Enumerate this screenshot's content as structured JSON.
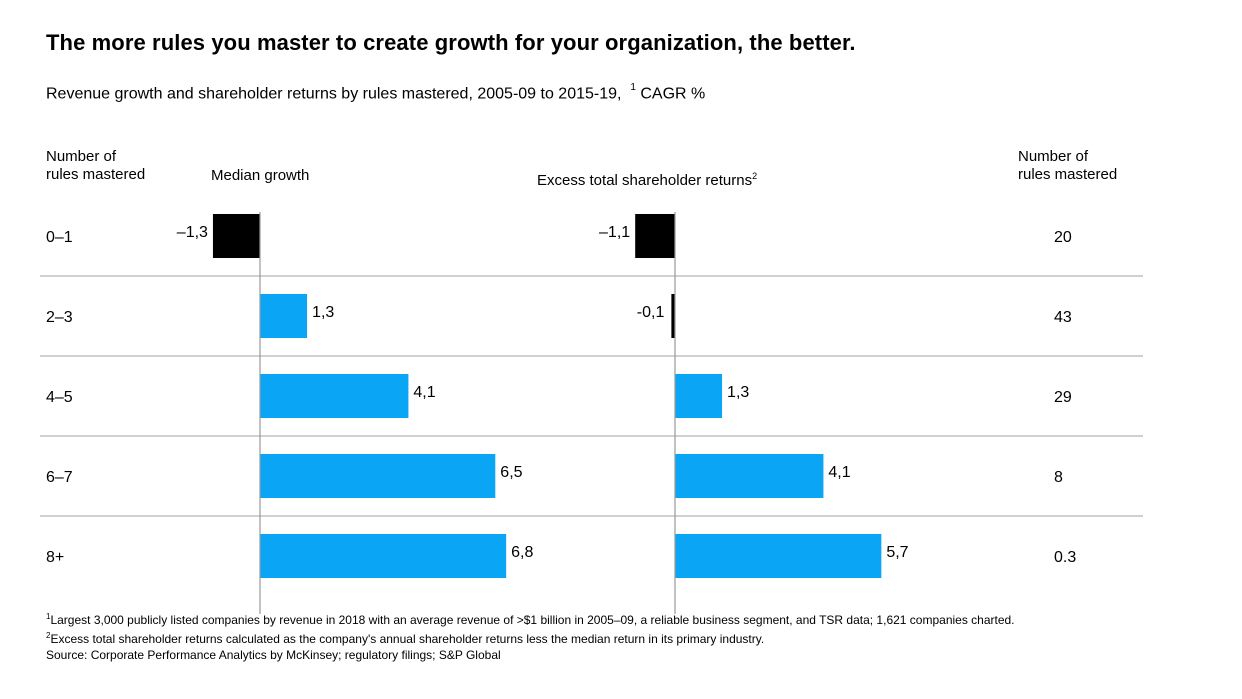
{
  "title": "The more rules you master to create growth for your organization, the better.",
  "subtitle": {
    "text": "Revenue growth and shareholder returns by rules mastered, 2005-09 to 2015-19,",
    "footnote_mark": "1",
    "unit": "CAGR %"
  },
  "headers": {
    "left_count": [
      "Number of",
      "rules mastered"
    ],
    "median_growth": "Median growth",
    "excess_tsr": "Excess total shareholder returns",
    "excess_tsr_mark": "2",
    "right_count": [
      "Number of",
      "rules mastered"
    ]
  },
  "colors": {
    "positive": "#0aa5f5",
    "negative": "#000000",
    "separator": "#b3b3b3",
    "axis": "#9a9a9a"
  },
  "chart_data": {
    "type": "bar",
    "orientation": "horizontal",
    "categories": [
      "0–1",
      "2–3",
      "4–5",
      "6–7",
      "8+"
    ],
    "series": [
      {
        "name": "Median growth",
        "values": [
          -1.3,
          1.3,
          4.1,
          6.5,
          6.8
        ],
        "labels": [
          "–1,3",
          "1,3",
          "4,1",
          "6,5",
          "6,8"
        ]
      },
      {
        "name": "Excess total shareholder returns",
        "values": [
          -1.1,
          -0.1,
          1.3,
          4.1,
          5.7
        ],
        "labels": [
          "–1,1",
          "-0,1",
          "1,3",
          "4,1",
          "5,7"
        ]
      }
    ],
    "counts": [
      "20",
      "43",
      "29",
      "8",
      "0.3"
    ]
  },
  "footnotes": [
    {
      "mark": "1",
      "text": "Largest 3,000 publicly listed companies by revenue in 2018 with an average revenue of >$1 billion in 2005–09, a reliable business segment, and TSR data;  1,621 companies charted."
    },
    {
      "mark": "2",
      "text": "Excess total shareholder returns calculated as the company's annual shareholder returns less the median return in its primary industry."
    },
    {
      "mark": "",
      "text": "Source: Corporate Performance Analytics by McKinsey; regulatory filings; S&P Global"
    }
  ]
}
